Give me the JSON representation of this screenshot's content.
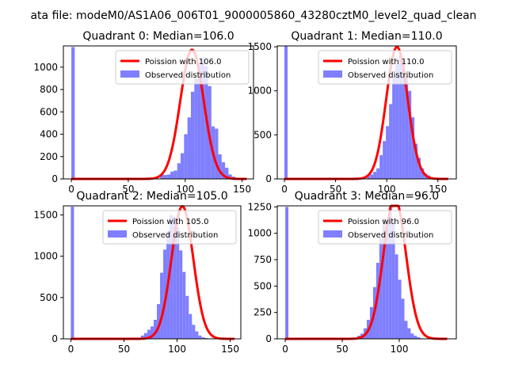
{
  "figure": {
    "suptitle": "ata file: modeM0/AS1A06_006T01_9000005860_43280cztM0_level2_quad_clean"
  },
  "colors": {
    "observed": "#7f7fff",
    "poisson": "#ff0000",
    "axis": "#000000"
  },
  "chart_data": [
    {
      "type": "bar",
      "title": "Quadrant 0: Median=106.0",
      "xlim": [
        -7,
        160
      ],
      "ylim": [
        0,
        1190
      ],
      "xticks": [
        0,
        50,
        100,
        150
      ],
      "yticks": [
        0,
        200,
        400,
        600,
        800,
        1000
      ],
      "legend_position": "top-right",
      "poisson": {
        "label": "Poission with 106.0",
        "mean": 106.0,
        "x_range": [
          0,
          154
        ]
      },
      "observed": {
        "label": "Observed distribution",
        "bins_start": 0,
        "bin_width": 3,
        "values": [
          1180,
          0,
          0,
          0,
          0,
          0,
          0,
          0,
          0,
          0,
          0,
          0,
          0,
          0,
          0,
          0,
          0,
          0,
          0,
          0,
          0,
          0,
          0,
          0,
          0,
          0,
          40,
          35,
          40,
          65,
          75,
          140,
          230,
          400,
          550,
          780,
          900,
          1020,
          1080,
          1010,
          830,
          470,
          450,
          220,
          150,
          100,
          40,
          20,
          10,
          5,
          0,
          0
        ]
      }
    },
    {
      "type": "bar",
      "title": "Quadrant 1: Median=110.0",
      "xlim": [
        -7,
        168
      ],
      "ylim": [
        0,
        1510
      ],
      "xticks": [
        0,
        50,
        100,
        150
      ],
      "yticks": [
        0,
        500,
        1000,
        1500
      ],
      "legend_position": "top-right",
      "poisson": {
        "label": "Poission with 110.0",
        "mean": 110.0,
        "x_range": [
          0,
          160
        ]
      },
      "observed": {
        "label": "Observed distribution",
        "bins_start": 0,
        "bin_width": 3.1,
        "values": [
          1510,
          0,
          0,
          0,
          0,
          0,
          0,
          0,
          0,
          0,
          0,
          0,
          0,
          0,
          0,
          0,
          0,
          0,
          0,
          0,
          0,
          0,
          0,
          0,
          0,
          0,
          30,
          50,
          80,
          120,
          270,
          430,
          600,
          850,
          1150,
          1300,
          1400,
          1340,
          1170,
          1000,
          700,
          400,
          240,
          120,
          60,
          40,
          20,
          10,
          5,
          0,
          0,
          0
        ]
      }
    },
    {
      "type": "bar",
      "title": "Quadrant 2: Median=105.0",
      "xlim": [
        -7,
        160
      ],
      "ylim": [
        0,
        1610
      ],
      "xticks": [
        0,
        50,
        100,
        150
      ],
      "yticks": [
        0,
        500,
        1000,
        1500
      ],
      "legend_position": "top-right",
      "poisson": {
        "label": "Poission with 105.0",
        "mean": 105.0,
        "x_range": [
          0,
          154
        ]
      },
      "observed": {
        "label": "Observed distribution",
        "bins_start": 0,
        "bin_width": 3,
        "values": [
          1600,
          0,
          0,
          0,
          0,
          0,
          0,
          0,
          0,
          0,
          0,
          0,
          0,
          0,
          0,
          0,
          0,
          0,
          0,
          0,
          0,
          0,
          40,
          70,
          110,
          150,
          230,
          420,
          800,
          1080,
          1300,
          1500,
          1470,
          1350,
          1070,
          810,
          520,
          300,
          170,
          90,
          40,
          20,
          10,
          0,
          0,
          0,
          0,
          0,
          0,
          0,
          0,
          0
        ]
      }
    },
    {
      "type": "bar",
      "title": "Quadrant 3: Median=96.0",
      "xlim": [
        -7,
        150
      ],
      "ylim": [
        0,
        1260
      ],
      "xticks": [
        0,
        50,
        100
      ],
      "yticks": [
        0,
        250,
        500,
        750,
        1000,
        1250
      ],
      "legend_position": "top-right",
      "poisson": {
        "label": "Poission with 96.0",
        "mean": 96.0,
        "x_range": [
          0,
          142
        ]
      },
      "observed": {
        "label": "Observed distribution",
        "bins_start": 0,
        "bin_width": 2.75,
        "values": [
          1250,
          0,
          0,
          0,
          0,
          0,
          0,
          0,
          0,
          0,
          0,
          0,
          0,
          0,
          0,
          0,
          0,
          0,
          0,
          0,
          0,
          0,
          0,
          30,
          50,
          100,
          180,
          300,
          490,
          720,
          950,
          1140,
          1040,
          1250,
          1100,
          800,
          560,
          380,
          170,
          100,
          50,
          30,
          15,
          5,
          0,
          0,
          0,
          0,
          0,
          0,
          0,
          0
        ]
      }
    }
  ]
}
